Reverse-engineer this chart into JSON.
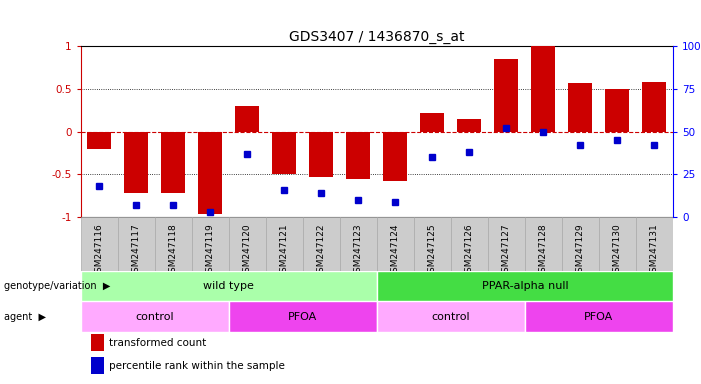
{
  "title": "GDS3407 / 1436870_s_at",
  "samples": [
    "GSM247116",
    "GSM247117",
    "GSM247118",
    "GSM247119",
    "GSM247120",
    "GSM247121",
    "GSM247122",
    "GSM247123",
    "GSM247124",
    "GSM247125",
    "GSM247126",
    "GSM247127",
    "GSM247128",
    "GSM247129",
    "GSM247130",
    "GSM247131"
  ],
  "red_bars": [
    -0.2,
    -0.72,
    -0.72,
    -0.97,
    0.3,
    -0.5,
    -0.53,
    -0.55,
    -0.58,
    0.22,
    0.15,
    0.85,
    1.0,
    0.57,
    0.5,
    0.58
  ],
  "blue_dots": [
    0.18,
    0.07,
    0.07,
    0.03,
    0.37,
    0.16,
    0.14,
    0.1,
    0.09,
    0.35,
    0.38,
    0.52,
    0.5,
    0.42,
    0.45,
    0.42
  ],
  "bar_color": "#cc0000",
  "dot_color": "#0000cc",
  "zero_line_color": "#cc0000",
  "ylim": [
    -1.0,
    1.0
  ],
  "yticks_left": [
    -1.0,
    -0.5,
    0.0,
    0.5,
    1.0
  ],
  "yticks_left_labels": [
    "-1",
    "-0.5",
    "0",
    "0.5",
    "1"
  ],
  "yticks_right_labels": [
    "0",
    "25",
    "50",
    "75",
    "100%"
  ],
  "genotype_labels": [
    {
      "label": "wild type",
      "start": 0,
      "end": 8,
      "color": "#aaffaa"
    },
    {
      "label": "PPAR-alpha null",
      "start": 8,
      "end": 16,
      "color": "#44dd44"
    }
  ],
  "agent_labels": [
    {
      "label": "control",
      "start": 0,
      "end": 4,
      "color": "#ffaaff"
    },
    {
      "label": "PFOA",
      "start": 4,
      "end": 8,
      "color": "#ee44ee"
    },
    {
      "label": "control",
      "start": 8,
      "end": 12,
      "color": "#ffaaff"
    },
    {
      "label": "PFOA",
      "start": 12,
      "end": 16,
      "color": "#ee44ee"
    }
  ],
  "legend_red": "transformed count",
  "legend_blue": "percentile rank within the sample",
  "tick_bg_color": "#cccccc"
}
